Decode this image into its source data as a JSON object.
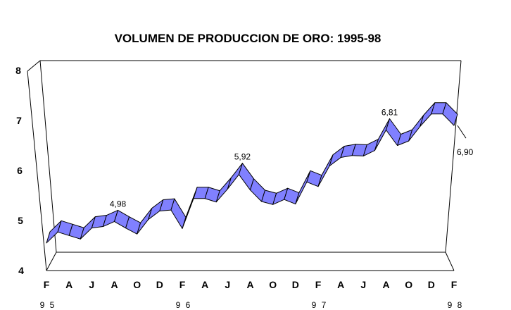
{
  "chart_data": {
    "type": "line",
    "style": "3d-ribbon",
    "title": "VOLUMEN DE PRODUCCION DE ORO: 1995-98",
    "xlabel": "",
    "ylabel": "",
    "ylim": [
      4,
      8
    ],
    "yticks": [
      "4",
      "5",
      "6",
      "7",
      "8"
    ],
    "x": [
      "Feb 95",
      "Mar 95",
      "Apr 95",
      "May 95",
      "Jun 95",
      "Jul 95",
      "Aug 95",
      "Sep 95",
      "Oct 95",
      "Nov 95",
      "Dec 95",
      "Jan 96",
      "Feb 96",
      "Mar 96",
      "Apr 96",
      "May 96",
      "Jun 96",
      "Jul 96",
      "Aug 96",
      "Sep 96",
      "Oct 96",
      "Nov 96",
      "Dec 96",
      "Jan 97",
      "Feb 97",
      "Mar 97",
      "Apr 97",
      "May 97",
      "Jun 97",
      "Jul 97",
      "Aug 97",
      "Sep 97",
      "Oct 97",
      "Nov 97",
      "Dec 97",
      "Jan 98",
      "Feb 98"
    ],
    "xtick_labels": [
      "F",
      "A",
      "J",
      "A",
      "O",
      "D",
      "F",
      "A",
      "J",
      "A",
      "O",
      "D",
      "F",
      "A",
      "J",
      "A",
      "O",
      "D",
      "F"
    ],
    "year_labels": [
      {
        "label": "9 5",
        "index": 0
      },
      {
        "label": "9 6",
        "index": 12
      },
      {
        "label": "9 7",
        "index": 24
      },
      {
        "label": "9 8",
        "index": 36
      }
    ],
    "series": [
      {
        "name": "Volumen",
        "color": "#8080ff",
        "values": [
          4.55,
          4.77,
          4.7,
          4.63,
          4.85,
          4.88,
          4.98,
          4.85,
          4.73,
          5.02,
          5.19,
          5.21,
          4.84,
          5.44,
          5.44,
          5.37,
          5.63,
          5.92,
          5.61,
          5.38,
          5.32,
          5.42,
          5.33,
          5.77,
          5.68,
          6.09,
          6.26,
          6.3,
          6.29,
          6.4,
          6.81,
          6.5,
          6.59,
          6.88,
          7.13,
          7.13,
          6.9
        ]
      }
    ],
    "annotations": [
      {
        "index": 6,
        "text": "4,98"
      },
      {
        "index": 17,
        "text": "5,92"
      },
      {
        "index": 30,
        "text": "6,81"
      },
      {
        "index": 36,
        "text": "6,90"
      }
    ],
    "grid": false,
    "legend": "none"
  }
}
